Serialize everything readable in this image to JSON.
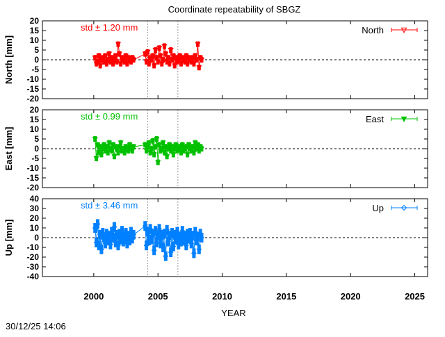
{
  "chart_data": {
    "type": "scatter",
    "title": "Coordinate repeatability of SBGZ",
    "xlabel": "YEAR",
    "xlim": [
      1996,
      2026
    ],
    "xticks": [
      2000,
      2005,
      2010,
      2015,
      2020,
      2025
    ],
    "event_lines": [
      2004.2,
      2006.55
    ],
    "timestamp": "30/12/25 14:06",
    "panels": [
      {
        "name": "North",
        "ylabel": "North [mm]",
        "ylim": [
          -20,
          20
        ],
        "yticks": [
          20,
          15,
          10,
          5,
          0,
          -5,
          -10,
          -15,
          -20
        ],
        "std_label": "std ± 1.20 mm",
        "color": "#ff0000",
        "marker": "triangle-down-open",
        "segments": [
          {
            "start": 2000.1,
            "step": 0.1,
            "values": [
              1,
              -2,
              -1,
              2,
              -3,
              0,
              1,
              -1,
              2,
              -2,
              0,
              3,
              -1,
              1,
              -2,
              0,
              2,
              -1,
              8,
              3,
              -2,
              1,
              0,
              -1,
              2,
              -2,
              1,
              0,
              -1,
              1,
              0
            ]
          },
          {
            "start": 2004.0,
            "step": 0.1,
            "values": [
              3,
              -1,
              4,
              -2,
              1,
              0,
              2,
              -3,
              5,
              1,
              -1,
              6,
              2,
              -2,
              0,
              7,
              3,
              -1,
              1,
              -2,
              5,
              0,
              2,
              -3,
              1,
              -1,
              0,
              2,
              -2,
              1,
              0,
              -1,
              2,
              -2,
              1,
              0,
              -1,
              1,
              -2,
              2,
              0,
              8,
              -4,
              1,
              0
            ]
          }
        ]
      },
      {
        "name": "East",
        "ylabel": "East [mm]",
        "ylim": [
          -20,
          20
        ],
        "yticks": [
          20,
          15,
          10,
          5,
          0,
          -5,
          -10,
          -15,
          -20
        ],
        "std_label": "std ± 0.99 mm",
        "color": "#00c000",
        "marker": "triangle-down-filled",
        "segments": [
          {
            "start": 2000.1,
            "step": 0.1,
            "values": [
              5,
              -5,
              2,
              -2,
              1,
              -3,
              0,
              2,
              -1,
              1,
              -2,
              3,
              0,
              -1,
              2,
              -4,
              1,
              0,
              -2,
              1,
              3,
              -1,
              0,
              -2,
              1,
              0,
              -1,
              2,
              0,
              -1,
              1
            ]
          },
          {
            "start": 2004.0,
            "step": 0.1,
            "values": [
              2,
              -1,
              1,
              3,
              -2,
              0,
              4,
              -3,
              1,
              5,
              -7,
              2,
              -1,
              0,
              3,
              -2,
              1,
              -4,
              0,
              2,
              -1,
              1,
              -3,
              0,
              2,
              -1,
              0,
              1,
              -2,
              2,
              -1,
              0,
              1,
              -3,
              2,
              0,
              -1,
              1,
              -2,
              3,
              0,
              2,
              -1,
              1,
              0
            ]
          }
        ]
      },
      {
        "name": "Up",
        "ylabel": "Up [mm]",
        "ylim": [
          -40,
          40
        ],
        "yticks": [
          40,
          30,
          20,
          10,
          0,
          -10,
          -20,
          -30,
          -40
        ],
        "std_label": "std ± 3.46 mm",
        "color": "#0080ff",
        "marker": "diamond-open",
        "segments": [
          {
            "start": 2000.1,
            "step": 0.1,
            "values": [
              10,
              -5,
              14,
              -8,
              3,
              -12,
              5,
              0,
              -6,
              4,
              -3,
              2,
              -7,
              6,
              0,
              11,
              -5,
              3,
              -8,
              4,
              -2,
              7,
              -4,
              0,
              5,
              -6,
              2,
              -3,
              6,
              -1,
              3
            ]
          },
          {
            "start": 2004.0,
            "step": 0.1,
            "values": [
              12,
              -8,
              6,
              -3,
              9,
              -2,
              4,
              -13,
              7,
              -5,
              2,
              9,
              -6,
              3,
              -10,
              4,
              -19,
              8,
              -4,
              2,
              -15,
              5,
              -9,
              3,
              -2,
              6,
              -7,
              1,
              -4,
              7,
              -3,
              2,
              -8,
              4,
              -1,
              5,
              -6,
              2,
              -16,
              6,
              -3,
              1,
              -12,
              4,
              0
            ]
          }
        ]
      }
    ]
  }
}
